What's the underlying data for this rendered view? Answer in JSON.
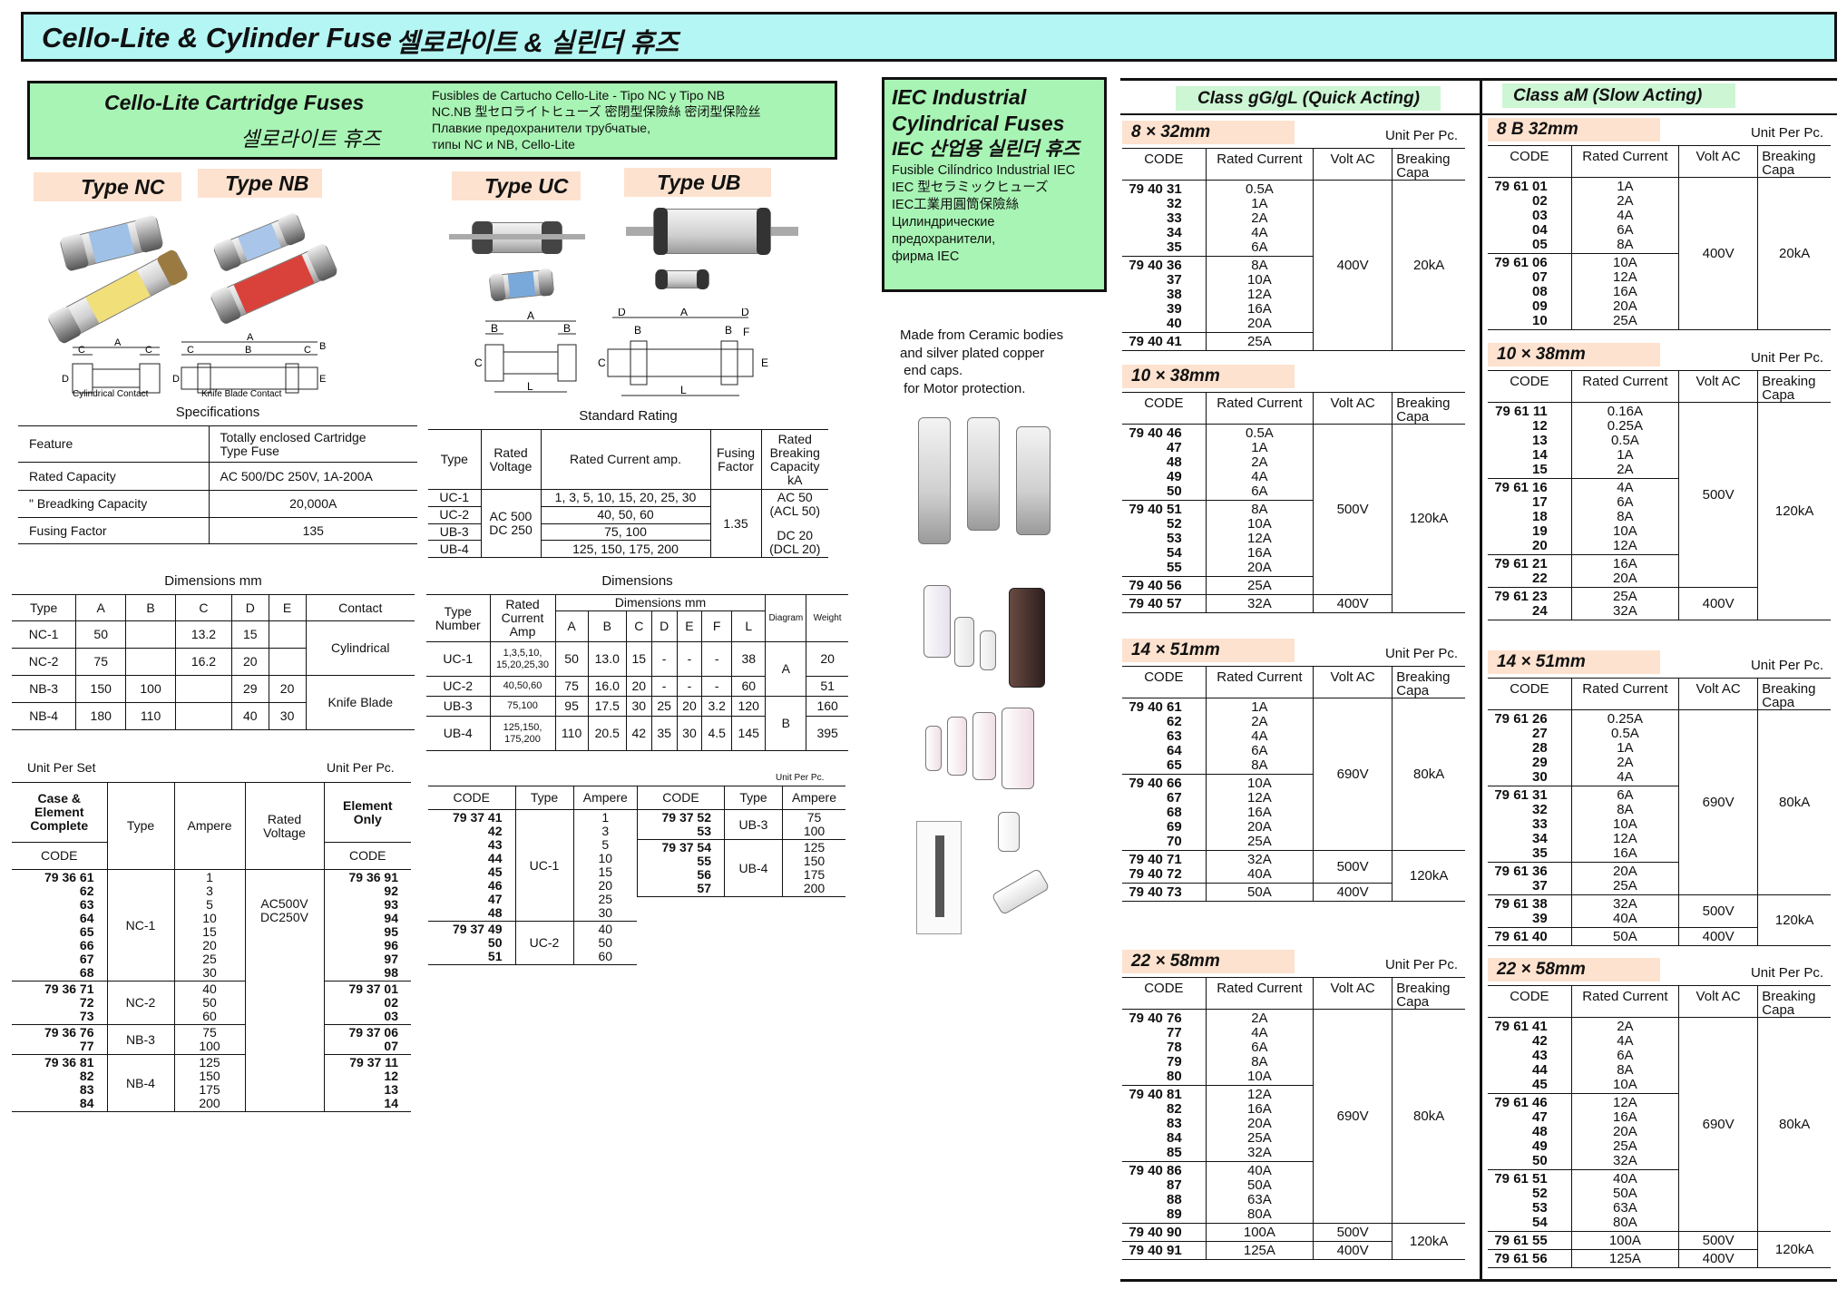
{
  "title": {
    "en": "Cello-Lite & Cylinder Fuse",
    "ko": "셀로라이트 & 실린더 휴즈"
  },
  "cello": {
    "title": "Cello-Lite Cartridge Fuses",
    "title_ko": "셀로라이트 휴즈",
    "translations": [
      "Fusibles de Cartucho Cello-Lite - Tipo NC y Tipo NB",
      "NC.NB 型セロライトヒューズ  密閉型保險絲  密闭型保险丝",
      "Плавкие предохранители трубчатые,",
      "типы NC и NB, Cello-Lite"
    ],
    "types": [
      "Type NC",
      "Type NB",
      "Type UC",
      "Type UB"
    ],
    "diagram_captions": [
      "Cylindrical Contact",
      "Knife Blade Contact"
    ],
    "diagram_letters": {
      "nc": [
        "C",
        "A",
        "C",
        "D"
      ],
      "nb": [
        "A",
        "C",
        "B",
        "C",
        "B",
        "D",
        "E"
      ],
      "uc": [
        "A",
        "B",
        "B",
        "C",
        "L"
      ],
      "ub": [
        "D",
        "A",
        "D",
        "B",
        "B",
        "F",
        "C",
        "E",
        "L"
      ]
    }
  },
  "specs": {
    "title": "Specifications",
    "rows": [
      [
        "Feature",
        "Totally enclosed  Cartridge\nType Fuse"
      ],
      [
        "Rated Capacity",
        "AC 500/DC 250V, 1A-200A"
      ],
      [
        "\"    Breadking Capacity",
        "20,000A"
      ],
      [
        "Fusing Factor",
        "135"
      ]
    ]
  },
  "standard_rating": {
    "title": "Standard Rating",
    "headers": [
      "Type",
      "Rated\nVoltage",
      "Rated Current amp.",
      "Fusing\nFactor",
      "Rated\nBreaking\nCapacity\nkA"
    ],
    "types": [
      "UC-1",
      "UC-2",
      "UB-3",
      "UB-4"
    ],
    "voltage": "AC 500\nDC 250",
    "currents": [
      "1, 3, 5, 10, 15, 20, 25, 30",
      "40, 50, 60",
      "75, 100",
      "125, 150, 175, 200"
    ],
    "fusing_factor": "1.35",
    "capacity_ac": "AC 50\n(ACL 50)",
    "capacity_dc": "DC 20\n(DCL 20)"
  },
  "dims_nc_nb": {
    "title": "Dimensions mm",
    "headers": [
      "Type",
      "A",
      "B",
      "C",
      "D",
      "E",
      "Contact"
    ],
    "rows": [
      [
        "NC-1",
        "50",
        "",
        "13.2",
        "15",
        ""
      ],
      [
        "NC-2",
        "75",
        "",
        "16.2",
        "20",
        ""
      ],
      [
        "NB-3",
        "150",
        "100",
        "",
        "29",
        "20"
      ],
      [
        "NB-4",
        "180",
        "110",
        "",
        "40",
        "30"
      ]
    ],
    "contacts": [
      "Cylindrical",
      "Knife Blade"
    ]
  },
  "dims_uc_ub": {
    "title": "Dimensions",
    "headers": {
      "type": "Type\nNumber",
      "current": "Rated\nCurrent\nAmp",
      "dims": "Dimensions mm",
      "cols": [
        "A",
        "B",
        "C",
        "D",
        "E",
        "F",
        "L"
      ],
      "diagram": "Diagram",
      "weight": "Weight"
    },
    "rows": [
      [
        "UC-1",
        "1,3,5,10,\n15,20,25,30",
        "50",
        "13.0",
        "15",
        "-",
        "-",
        "-",
        "38",
        "20"
      ],
      [
        "UC-2",
        "40,50,60",
        "75",
        "16.0",
        "20",
        "-",
        "-",
        "-",
        "60",
        "51"
      ],
      [
        "UB-3",
        "75,100",
        "95",
        "17.5",
        "30",
        "25",
        "20",
        "3.2",
        "120",
        "160"
      ],
      [
        "UB-4",
        "125,150,\n175,200",
        "110",
        "20.5",
        "42",
        "35",
        "30",
        "4.5",
        "145",
        "395"
      ]
    ],
    "diagrams": [
      "A",
      "B"
    ]
  },
  "unit_set": {
    "unit_set": "Unit Per Set",
    "unit_pc": "Unit Per Pc.",
    "headers": {
      "complete": "Case &\nElement\nComplete",
      "code": "CODE",
      "type": "Type",
      "ampere": "Ampere",
      "voltage": "Rated\nVoltage",
      "element": "Element\nOnly"
    },
    "voltage": "AC500V\nDC250V",
    "groups": [
      {
        "codes": "79 36 61\n62\n63\n64\n65\n66\n67\n68",
        "type": "NC-1",
        "amperes": "1\n3\n5\n10\n15\n20\n25\n30",
        "element_codes": "79 36 91\n92\n93\n94\n95\n96\n97\n98"
      },
      {
        "codes": "79 36 71\n72\n73",
        "type": "NC-2",
        "amperes": "40\n50\n60",
        "element_codes": "79 37 01\n02\n03"
      },
      {
        "codes": "79 36 76\n77",
        "type": "NB-3",
        "amperes": "75\n100",
        "element_codes": "79 37 06\n07"
      },
      {
        "codes": "79 36 81\n82\n83\n84",
        "type": "NB-4",
        "amperes": "125\n150\n175\n200",
        "element_codes": "79 37 11\n12\n13\n14"
      }
    ]
  },
  "uc_ub_codes": {
    "unit_pc": "Unit Per Pc.",
    "headers": [
      "CODE",
      "Type",
      "Ampere"
    ],
    "left": [
      {
        "codes": "79 37 41\n42\n43\n44\n45\n46\n47\n48",
        "type": "UC-1",
        "amperes": "1\n3\n5\n10\n15\n20\n25\n30"
      },
      {
        "codes": "79 37 49\n50\n51",
        "type": "UC-2",
        "amperes": "40\n50\n60"
      }
    ],
    "right": [
      {
        "codes": "79 37 52\n53",
        "type": "UB-3",
        "amperes": "75\n100"
      },
      {
        "codes": "79 37 54\n55\n56\n57",
        "type": "UB-4",
        "amperes": "125\n150\n175\n200"
      }
    ]
  },
  "iec": {
    "title": [
      "IEC Industrial",
      "Cylindrical Fuses"
    ],
    "title_ko": "IEC 산업용 실린더 휴즈",
    "lines": [
      "Fusible Cilíndrico Industrial IEC",
      "IEC 型セラミックヒューズ",
      "IEC工業用圓筒保險絲",
      "Цилиндрические",
      " предохранители,",
      "фирма IEC"
    ],
    "description": "Made from Ceramic bodies\nand silver plated copper\n end caps.\n for Motor protection."
  },
  "iec_headers": [
    "CODE",
    "Rated Current",
    "Volt  AC",
    "Breaking\nCapa"
  ],
  "class_gg": {
    "label": "Class gG/gL (Quick Acting)",
    "tables": [
      {
        "size": "8 × 32mm",
        "unit": "Unit Per Pc.",
        "groups": [
          {
            "codes": [
              "79 40 31",
              "32",
              "33",
              "34",
              "35"
            ],
            "currents": [
              "0.5A",
              "1A",
              "2A",
              "4A",
              "6A"
            ]
          },
          {
            "codes": [
              "79 40 36",
              "37",
              "38",
              "39",
              "40"
            ],
            "currents": [
              "8A",
              "10A",
              "12A",
              "16A",
              "20A"
            ]
          },
          {
            "codes": [
              "79 40 41"
            ],
            "currents": [
              "25A"
            ]
          }
        ],
        "volt": [
          {
            "label": "400V",
            "span": 3
          }
        ],
        "capa": [
          {
            "label": "20kA",
            "span": 3
          }
        ]
      },
      {
        "size": "10 × 38mm",
        "groups": [
          {
            "codes": [
              "79 40 46",
              "47",
              "48",
              "49",
              "50"
            ],
            "currents": [
              "0.5A",
              "1A",
              "2A",
              "4A",
              "6A"
            ]
          },
          {
            "codes": [
              "79 40 51",
              "52",
              "53",
              "54",
              "55"
            ],
            "currents": [
              "8A",
              "10A",
              "12A",
              "16A",
              "20A"
            ]
          },
          {
            "codes": [
              "79 40 56"
            ],
            "currents": [
              "25A"
            ]
          },
          {
            "codes": [
              "79 40 57"
            ],
            "currents": [
              "32A"
            ]
          }
        ],
        "volt": [
          {
            "label": "500V",
            "span": 3
          },
          {
            "label": "400V",
            "span": 1
          }
        ],
        "capa": [
          {
            "label": "120kA",
            "span": 4
          }
        ]
      },
      {
        "size": "14 × 51mm",
        "unit": "Unit Per Pc.",
        "groups": [
          {
            "codes": [
              "79 40 61",
              "62",
              "63",
              "64",
              "65"
            ],
            "currents": [
              "1A",
              "2A",
              "4A",
              "6A",
              "8A"
            ]
          },
          {
            "codes": [
              "79 40 66",
              "67",
              "68",
              "69",
              "70"
            ],
            "currents": [
              "10A",
              "12A",
              "16A",
              "20A",
              "25A"
            ]
          },
          {
            "codes": [
              "79 40 71",
              "79 40 72"
            ],
            "currents": [
              "32A",
              "40A"
            ]
          },
          {
            "codes": [
              "79 40 73"
            ],
            "currents": [
              "50A"
            ]
          }
        ],
        "volt": [
          {
            "label": "690V",
            "span": 2
          },
          {
            "label": "500V",
            "span": 1
          },
          {
            "label": "400V",
            "span": 1
          }
        ],
        "capa": [
          {
            "label": "80kA",
            "span": 2
          },
          {
            "label": "120kA",
            "span": 2
          }
        ]
      },
      {
        "size": "22 × 58mm",
        "unit": "Unit Per Pc.",
        "groups": [
          {
            "codes": [
              "79 40 76",
              "77",
              "78",
              "79",
              "80"
            ],
            "currents": [
              "2A",
              "4A",
              "6A",
              "8A",
              "10A"
            ]
          },
          {
            "codes": [
              "79 40 81",
              "82",
              "83",
              "84",
              "85"
            ],
            "currents": [
              "12A",
              "16A",
              "20A",
              "25A",
              "32A"
            ]
          },
          {
            "codes": [
              "79 40 86",
              "87",
              "88",
              "89"
            ],
            "currents": [
              "40A",
              "50A",
              "63A",
              "80A"
            ]
          },
          {
            "codes": [
              "79 40 90"
            ],
            "currents": [
              "100A"
            ]
          },
          {
            "codes": [
              "79 40 91"
            ],
            "currents": [
              "125A"
            ]
          }
        ],
        "volt": [
          {
            "label": "690V",
            "span": 3
          },
          {
            "label": "500V",
            "span": 1
          },
          {
            "label": "400V",
            "span": 1
          }
        ],
        "capa": [
          {
            "label": "80kA",
            "span": 3
          },
          {
            "label": "120kA",
            "span": 2
          }
        ]
      }
    ]
  },
  "class_am": {
    "label": "Class aM (Slow Acting)",
    "tables": [
      {
        "size": "8 B 32mm",
        "unit": "Unit Per Pc.",
        "groups": [
          {
            "codes": [
              "79 61 01",
              "02",
              "03",
              "04",
              "05"
            ],
            "currents": [
              "1A",
              "2A",
              "4A",
              "6A",
              "8A"
            ]
          },
          {
            "codes": [
              "79 61 06",
              "07",
              "08",
              "09",
              "10"
            ],
            "currents": [
              "10A",
              "12A",
              "16A",
              "20A",
              "25A"
            ]
          }
        ],
        "volt": [
          {
            "label": "400V",
            "span": 2
          }
        ],
        "capa": [
          {
            "label": "20kA",
            "span": 2
          }
        ]
      },
      {
        "size": "10 × 38mm",
        "unit": "Unit Per Pc.",
        "groups": [
          {
            "codes": [
              "79 61 11",
              "12",
              "13",
              "14",
              "15"
            ],
            "currents": [
              "0.16A",
              "0.25A",
              "0.5A",
              "1A",
              "2A"
            ]
          },
          {
            "codes": [
              "79 61 16",
              "17",
              "18",
              "19",
              "20"
            ],
            "currents": [
              "4A",
              "6A",
              "8A",
              "10A",
              "12A"
            ]
          },
          {
            "codes": [
              "79 61 21",
              "22"
            ],
            "currents": [
              "16A",
              "20A"
            ]
          },
          {
            "codes": [
              "79 61 23",
              "24"
            ],
            "currents": [
              "25A",
              "32A"
            ]
          }
        ],
        "volt": [
          {
            "label": "500V",
            "span": 3
          },
          {
            "label": "400V",
            "span": 1
          }
        ],
        "capa": [
          {
            "label": "120kA",
            "span": 4
          }
        ]
      },
      {
        "size": "14 × 51mm",
        "unit": "Unit Per Pc.",
        "groups": [
          {
            "codes": [
              "79 61 26",
              "27",
              "28",
              "29",
              "30"
            ],
            "currents": [
              "0.25A",
              "0.5A",
              "1A",
              "2A",
              "4A"
            ]
          },
          {
            "codes": [
              "79 61 31",
              "32",
              "33",
              "34",
              "35"
            ],
            "currents": [
              "6A",
              "8A",
              "10A",
              "12A",
              "16A"
            ]
          },
          {
            "codes": [
              "79 61 36",
              "37"
            ],
            "currents": [
              "20A",
              "25A"
            ]
          },
          {
            "codes": [
              "79 61 38",
              "39"
            ],
            "currents": [
              "32A",
              "40A"
            ]
          },
          {
            "codes": [
              "79 61 40"
            ],
            "currents": [
              "50A"
            ]
          }
        ],
        "volt": [
          {
            "label": "690V",
            "span": 3
          },
          {
            "label": "500V",
            "span": 1
          },
          {
            "label": "400V",
            "span": 1
          }
        ],
        "capa": [
          {
            "label": "80kA",
            "span": 3
          },
          {
            "label": "120kA",
            "span": 2
          }
        ]
      },
      {
        "size": "22 × 58mm",
        "unit": "Unit Per Pc.",
        "groups": [
          {
            "codes": [
              "79 61 41",
              "42",
              "43",
              "44",
              "45"
            ],
            "currents": [
              "2A",
              "4A",
              "6A",
              "8A",
              "10A"
            ]
          },
          {
            "codes": [
              "79 61 46",
              "47",
              "48",
              "49",
              "50"
            ],
            "currents": [
              "12A",
              "16A",
              "20A",
              "25A",
              "32A"
            ]
          },
          {
            "codes": [
              "79 61 51",
              "52",
              "53",
              "54"
            ],
            "currents": [
              "40A",
              "50A",
              "63A",
              "80A"
            ]
          },
          {
            "codes": [
              "79 61 55"
            ],
            "currents": [
              "100A"
            ]
          },
          {
            "codes": [
              "79 61 56"
            ],
            "currents": [
              "125A"
            ]
          }
        ],
        "volt": [
          {
            "label": "690V",
            "span": 3
          },
          {
            "label": "500V",
            "span": 1
          },
          {
            "label": "400V",
            "span": 1
          }
        ],
        "capa": [
          {
            "label": "80kA",
            "span": 3
          },
          {
            "label": "120kA",
            "span": 2
          }
        ]
      }
    ]
  },
  "colors": {
    "title_bar": "#b4f6f4",
    "section_green": "#a8f4b4",
    "label_peach": "#fde2cf",
    "class_label_green": "#cdf6d4"
  }
}
